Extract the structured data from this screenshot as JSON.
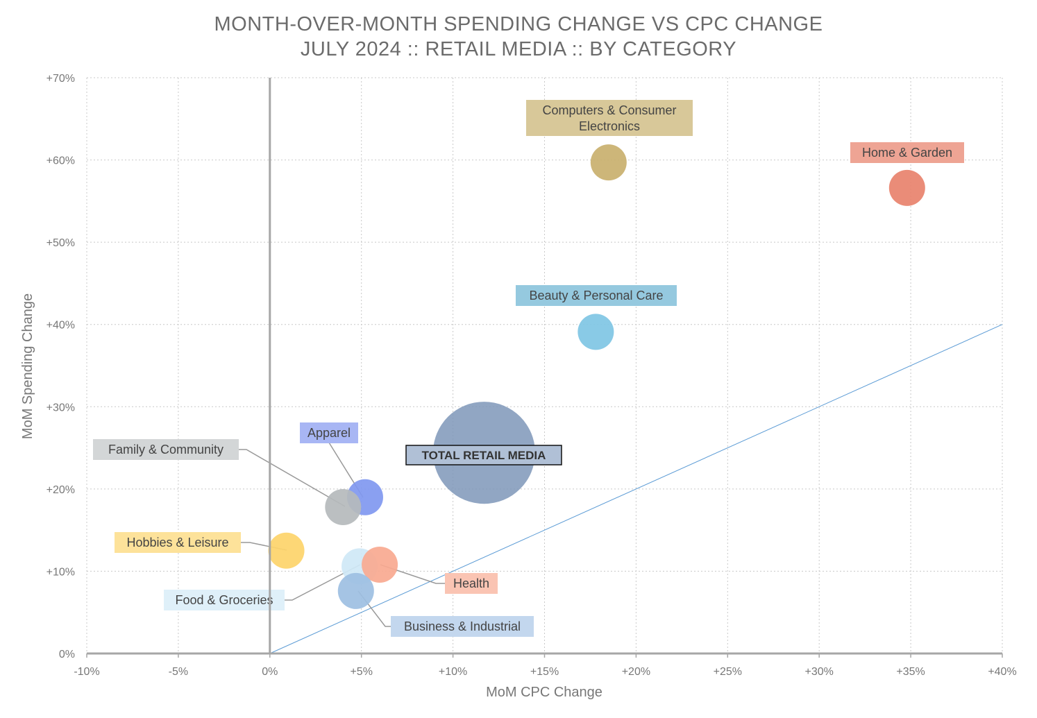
{
  "chart_data": {
    "type": "scatter",
    "title": "MONTH-OVER-MONTH SPENDING CHANGE VS CPC CHANGE",
    "subtitle": "JULY 2024 :: RETAIL MEDIA :: BY CATEGORY",
    "xlabel": "MoM CPC Change",
    "ylabel": "MoM Spending Change",
    "xlim": [
      -10,
      40
    ],
    "ylim": [
      0,
      70
    ],
    "x_ticks": [
      {
        "value": -10,
        "label": "-10%"
      },
      {
        "value": -5,
        "label": "-5%"
      },
      {
        "value": 0,
        "label": "0%"
      },
      {
        "value": 5,
        "label": "+5%"
      },
      {
        "value": 10,
        "label": "+10%"
      },
      {
        "value": 15,
        "label": "+15%"
      },
      {
        "value": 20,
        "label": "+20%"
      },
      {
        "value": 25,
        "label": "+25%"
      },
      {
        "value": 30,
        "label": "+30%"
      },
      {
        "value": 35,
        "label": "+35%"
      },
      {
        "value": 40,
        "label": "+40%"
      }
    ],
    "y_ticks": [
      {
        "value": 0,
        "label": "0%"
      },
      {
        "value": 10,
        "label": "+10%"
      },
      {
        "value": 20,
        "label": "+20%"
      },
      {
        "value": 30,
        "label": "+30%"
      },
      {
        "value": 40,
        "label": "+40%"
      },
      {
        "value": 50,
        "label": "+50%"
      },
      {
        "value": 60,
        "label": "+60%"
      },
      {
        "value": 70,
        "label": "+70%"
      }
    ],
    "grid": true,
    "reference_line": {
      "from": [
        0,
        0
      ],
      "to": [
        40,
        40
      ],
      "color": "#5b9bd5"
    },
    "series": [
      {
        "name": "Computers & Consumer Electronics",
        "x": 18.5,
        "y": 59.7,
        "size": 1.0,
        "color": "#c9b06e",
        "label_color": "#d8c899"
      },
      {
        "name": "Home & Garden",
        "x": 34.8,
        "y": 56.6,
        "size": 1.0,
        "color": "#e8826c",
        "label_color": "#eea494"
      },
      {
        "name": "Beauty & Personal Care",
        "x": 17.8,
        "y": 39.1,
        "size": 1.0,
        "color": "#7fc6e4",
        "label_color": "#95c9df"
      },
      {
        "name": "TOTAL RETAIL MEDIA",
        "x": 11.7,
        "y": 24.4,
        "size": 8.0,
        "color": "#7e96b8",
        "label_color": "#b0c0d6"
      },
      {
        "name": "Apparel",
        "x": 5.2,
        "y": 19.0,
        "size": 1.0,
        "color": "#8098f0",
        "label_color": "#a8b6f4"
      },
      {
        "name": "Family & Community",
        "x": 4.0,
        "y": 17.8,
        "size": 1.0,
        "color": "#b5babc",
        "label_color": "#d3d6d7"
      },
      {
        "name": "Hobbies & Leisure",
        "x": 0.9,
        "y": 12.5,
        "size": 1.0,
        "color": "#fdd46a",
        "label_color": "#fde29a"
      },
      {
        "name": "Food & Groceries",
        "x": 4.9,
        "y": 10.6,
        "size": 1.0,
        "color": "#cfe8f6",
        "label_color": "#dff0f9"
      },
      {
        "name": "Health",
        "x": 6.0,
        "y": 10.8,
        "size": 1.0,
        "color": "#f8a990",
        "label_color": "#fac4b3"
      },
      {
        "name": "Business & Industrial",
        "x": 4.7,
        "y": 7.6,
        "size": 1.0,
        "color": "#9dbfe2",
        "label_color": "#c3d7ee"
      }
    ]
  }
}
